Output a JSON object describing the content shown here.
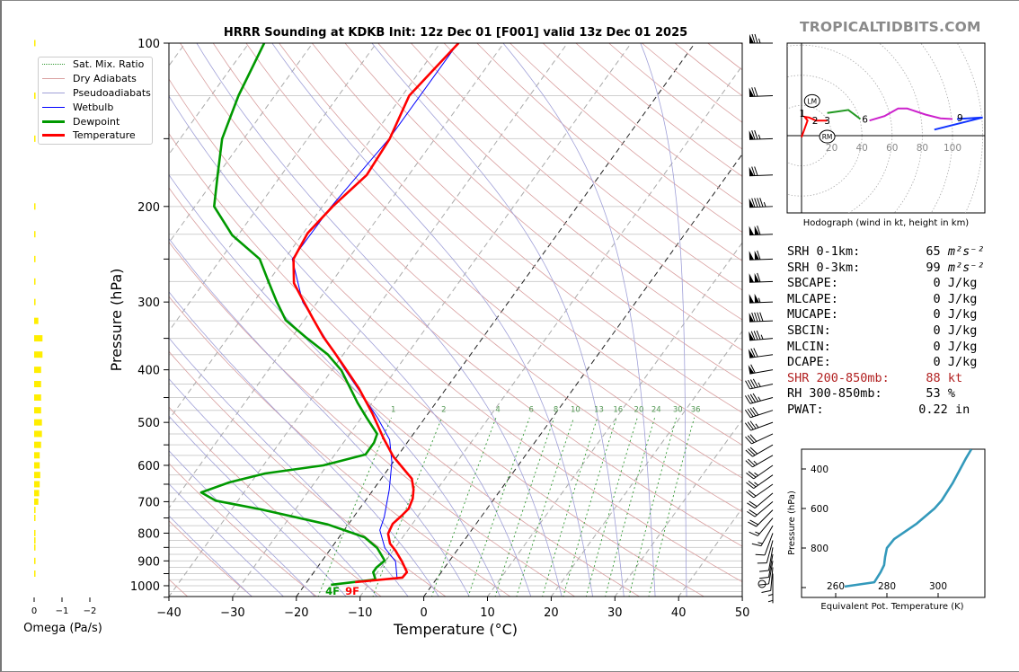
{
  "watermark": "TROPICALTIDBITS.COM",
  "chart_data": [
    {
      "type": "line",
      "title": "HRRR Sounding at KDKB Init: 12z Dec 01 [F001] valid 13z Dec 01 2025",
      "xlabel": "Temperature (°C)",
      "ylabel": "Pressure (hPa)",
      "xlim": [
        -40,
        50
      ],
      "ylim": [
        1050,
        100
      ],
      "x_ticks": [
        "−40",
        "−30",
        "−20",
        "−10",
        "0",
        "10",
        "20",
        "30",
        "40",
        "50"
      ],
      "x_tick_values": [
        -40,
        -30,
        -20,
        -10,
        0,
        10,
        20,
        30,
        40,
        50
      ],
      "y_ticks": [
        "100",
        "200",
        "300",
        "400",
        "500",
        "600",
        "700",
        "800",
        "900",
        "1000"
      ],
      "y_tick_values": [
        100,
        200,
        300,
        400,
        500,
        600,
        700,
        800,
        900,
        1000
      ],
      "legend": {
        "placement": "top-left",
        "entries": [
          "Sat. Mix. Ratio",
          "Dry Adiabats",
          "Pseudoadiabats",
          "Wetbulb",
          "Dewpoint",
          "Temperature"
        ]
      },
      "colors": {
        "temperature": "#ff0000",
        "dewpoint": "#009900",
        "wetbulb": "#0000ff",
        "dry": "#d9a0a0",
        "moist": "#a0a0d8",
        "mix": "#339933"
      },
      "mixing_ratio_labels": [
        "1",
        "2",
        "4",
        "6",
        "8",
        "10",
        "13",
        "16",
        "20",
        "24",
        "30",
        "36"
      ],
      "mixing_ratio_values": [
        1,
        2,
        4,
        6,
        8,
        10,
        13,
        16,
        20,
        24,
        30,
        36
      ],
      "surface_labels": {
        "dewpoint": "4F",
        "temperature": "9F"
      },
      "series": [
        {
          "name": "Temperature",
          "points": [
            [
              985,
              -12.4
            ],
            [
              966,
              -5.5
            ],
            [
              944,
              -5.4
            ],
            [
              902,
              -7.4
            ],
            [
              862,
              -9.6
            ],
            [
              836,
              -11.3
            ],
            [
              802,
              -12.7
            ],
            [
              769,
              -13.1
            ],
            [
              743,
              -12.6
            ],
            [
              721,
              -12.3
            ],
            [
              691,
              -12.8
            ],
            [
              665,
              -13.7
            ],
            [
              635,
              -15.2
            ],
            [
              609,
              -17.6
            ],
            [
              578,
              -20.6
            ],
            [
              535,
              -24.2
            ],
            [
              481,
              -28.8
            ],
            [
              432,
              -33.8
            ],
            [
              396,
              -38.3
            ],
            [
              371,
              -41.7
            ],
            [
              348,
              -45.1
            ],
            [
              322,
              -48.8
            ],
            [
              300,
              -52.1
            ],
            [
              277,
              -55.8
            ],
            [
              250,
              -58.6
            ],
            [
              224,
              -59.3
            ],
            [
              200,
              -58.4
            ],
            [
              175,
              -56.6
            ],
            [
              150,
              -57.1
            ],
            [
              125,
              -58.9
            ],
            [
              113,
              -58.1
            ],
            [
              100,
              -57.1
            ]
          ]
        },
        {
          "name": "Dewpoint",
          "points": [
            [
              996,
              -15.9
            ],
            [
              974,
              -9.5
            ],
            [
              944,
              -10.7
            ],
            [
              926,
              -10.7
            ],
            [
              899,
              -10.2
            ],
            [
              852,
              -12.8
            ],
            [
              814,
              -16.0
            ],
            [
              771,
              -23.2
            ],
            [
              723,
              -35.5
            ],
            [
              697,
              -43.5
            ],
            [
              673,
              -46.7
            ],
            [
              645,
              -43.4
            ],
            [
              621,
              -38.8
            ],
            [
              600,
              -30.6
            ],
            [
              573,
              -25.2
            ],
            [
              545,
              -25.2
            ],
            [
              525,
              -25.7
            ],
            [
              490,
              -29.2
            ],
            [
              460,
              -32.3
            ],
            [
              401,
              -38.5
            ],
            [
              375,
              -42.4
            ],
            [
              348,
              -47.9
            ],
            [
              324,
              -52.9
            ],
            [
              299,
              -56.5
            ],
            [
              275,
              -60
            ],
            [
              250,
              -63.9
            ],
            [
              226,
              -70.9
            ],
            [
              200,
              -77
            ],
            [
              175,
              -80
            ],
            [
              150,
              -83.4
            ],
            [
              125,
              -85.7
            ],
            [
              100,
              -87.6
            ]
          ]
        },
        {
          "name": "Wetbulb",
          "points": [
            [
              974,
              -6.1
            ],
            [
              902,
              -8.4
            ],
            [
              852,
              -11.6
            ],
            [
              790,
              -14.4
            ],
            [
              747,
              -15.2
            ],
            [
              665,
              -17.5
            ],
            [
              592,
              -20.2
            ],
            [
              538,
              -23.1
            ],
            [
              490,
              -27.5
            ],
            [
              432,
              -34.0
            ],
            [
              396,
              -38.5
            ],
            [
              300,
              -52.3
            ],
            [
              250,
              -58.8
            ],
            [
              200,
              -58.6
            ],
            [
              150,
              -57.2
            ],
            [
              100,
              -57.2
            ]
          ]
        }
      ],
      "wind_barbs": [
        [
          100,
          270,
          75
        ],
        [
          125,
          268,
          70
        ],
        [
          150,
          268,
          75
        ],
        [
          175,
          268,
          70
        ],
        [
          200,
          268,
          95
        ],
        [
          225,
          268,
          110
        ],
        [
          250,
          268,
          110
        ],
        [
          275,
          268,
          110
        ],
        [
          300,
          268,
          105
        ],
        [
          325,
          268,
          90
        ],
        [
          350,
          265,
          85
        ],
        [
          375,
          262,
          70
        ],
        [
          400,
          260,
          60
        ],
        [
          425,
          258,
          45
        ],
        [
          450,
          255,
          45
        ],
        [
          475,
          252,
          40
        ],
        [
          500,
          250,
          35
        ],
        [
          525,
          245,
          30
        ],
        [
          550,
          240,
          30
        ],
        [
          575,
          240,
          25
        ],
        [
          600,
          235,
          25
        ],
        [
          625,
          235,
          25
        ],
        [
          650,
          235,
          20
        ],
        [
          675,
          230,
          20
        ],
        [
          700,
          230,
          20
        ],
        [
          725,
          225,
          20
        ],
        [
          750,
          220,
          15
        ],
        [
          775,
          210,
          15
        ],
        [
          800,
          200,
          10
        ],
        [
          825,
          195,
          10
        ],
        [
          850,
          190,
          10
        ],
        [
          875,
          190,
          10
        ],
        [
          900,
          190,
          10
        ],
        [
          925,
          185,
          10
        ],
        [
          950,
          180,
          5
        ],
        [
          975,
          180,
          5
        ],
        [
          1000,
          0,
          0
        ]
      ]
    },
    {
      "type": "bar",
      "xlabel": "Omega (Pa/s)",
      "x_ticks": [
        "0",
        "−1",
        "−2"
      ],
      "x_tick_values": [
        0,
        -1,
        -2
      ],
      "color": "#ffee00",
      "points": [
        [
          100,
          -0.02
        ],
        [
          125,
          -0.05
        ],
        [
          150,
          -0.04
        ],
        [
          200,
          -0.01
        ],
        [
          225,
          -0.02
        ],
        [
          250,
          -0.03
        ],
        [
          275,
          -0.04
        ],
        [
          300,
          -0.05
        ],
        [
          325,
          -0.15
        ],
        [
          350,
          -0.3
        ],
        [
          375,
          -0.3
        ],
        [
          400,
          -0.25
        ],
        [
          425,
          -0.25
        ],
        [
          450,
          -0.25
        ],
        [
          475,
          -0.25
        ],
        [
          500,
          -0.28
        ],
        [
          525,
          -0.28
        ],
        [
          550,
          -0.25
        ],
        [
          575,
          -0.2
        ],
        [
          600,
          -0.2
        ],
        [
          625,
          -0.22
        ],
        [
          650,
          -0.2
        ],
        [
          675,
          -0.18
        ],
        [
          700,
          -0.15
        ],
        [
          725,
          -0.05
        ],
        [
          750,
          -0.03
        ],
        [
          800,
          -0.02
        ],
        [
          825,
          -0.05
        ],
        [
          850,
          -0.03
        ],
        [
          900,
          -0.01
        ],
        [
          950,
          -0.02
        ]
      ]
    },
    {
      "type": "line",
      "title": "Hodograph (wind in kt, height in km)",
      "ring_labels": [
        "20",
        "40",
        "60",
        "80",
        "100"
      ],
      "ring_values": [
        20,
        40,
        60,
        80,
        100
      ],
      "segments": [
        {
          "name": "0-3 km",
          "color": "#ff0000",
          "points": [
            [
              0,
              -1
            ],
            [
              4,
              10
            ],
            [
              2,
              12.5
            ],
            [
              5,
              12
            ],
            [
              9.5,
              10
            ],
            [
              17,
              10
            ]
          ]
        },
        {
          "name": "3-6 km",
          "color": "#229922",
          "points": [
            [
              17,
              15
            ],
            [
              24,
              16
            ],
            [
              31,
              17
            ],
            [
              39,
              11
            ]
          ]
        },
        {
          "name": "6-9 km",
          "color": "#cc22cc",
          "points": [
            [
              45,
              10
            ],
            [
              55,
              13
            ],
            [
              64,
              18
            ],
            [
              70,
              18
            ],
            [
              82,
              14
            ],
            [
              92,
              11.5
            ],
            [
              100,
              11
            ]
          ]
        },
        {
          "name": "9-12 km",
          "color": "#1133ff",
          "points": [
            [
              103,
              11
            ],
            [
              120,
              12
            ],
            [
              88,
              4
            ]
          ]
        }
      ],
      "height_labels": [
        {
          "text": "1",
          "u": 0.5,
          "v": 15
        },
        {
          "text": "2",
          "u": 9,
          "v": 10
        },
        {
          "text": "3",
          "u": 17,
          "v": 10
        },
        {
          "text": "6",
          "u": 42,
          "v": 11
        },
        {
          "text": "9",
          "u": 105,
          "v": 12
        }
      ],
      "storm_motion": [
        {
          "text": "LM",
          "u": 7,
          "v": 23
        },
        {
          "text": "RM",
          "u": 17,
          "v": -0.6
        }
      ]
    },
    {
      "type": "line",
      "xlabel": "Equivalent Pot. Temperature (K)",
      "ylabel": "Pressure (hPa)",
      "x_ticks": [
        "260",
        "280",
        "300"
      ],
      "x_tick_values": [
        260,
        280,
        300
      ],
      "y_ticks": [
        "400",
        "600",
        "800"
      ],
      "y_tick_values": [
        400,
        600,
        800
      ],
      "color": "#3399bb",
      "points": [
        [
          995,
          263.5
        ],
        [
          973,
          275.1
        ],
        [
          923,
          277.5
        ],
        [
          886,
          278.9
        ],
        [
          845,
          279.3
        ],
        [
          800,
          280
        ],
        [
          755,
          282.8
        ],
        [
          677,
          291.6
        ],
        [
          600,
          298.6
        ],
        [
          559,
          301.4
        ],
        [
          473,
          305.6
        ],
        [
          345,
          310.9
        ],
        [
          300,
          313
        ]
      ]
    }
  ],
  "stats": [
    {
      "label": "SRH 0-1km:",
      "value": "65",
      "unit": "m²s⁻²"
    },
    {
      "label": "SRH 0-3km:",
      "value": "99",
      "unit": "m²s⁻²"
    },
    {
      "label": "SBCAPE:",
      "value": "0",
      "unit": "J/kg"
    },
    {
      "label": "MLCAPE:",
      "value": "0",
      "unit": "J/kg"
    },
    {
      "label": "MUCAPE:",
      "value": "0",
      "unit": "J/kg"
    },
    {
      "label": "SBCIN:",
      "value": "0",
      "unit": "J/kg"
    },
    {
      "label": "MLCIN:",
      "value": "0",
      "unit": "J/kg"
    },
    {
      "label": "DCAPE:",
      "value": "0",
      "unit": "J/kg"
    },
    {
      "label": "SHR 200-850mb:",
      "value": "88",
      "unit": "kt"
    },
    {
      "label": "RH 300-850mb:",
      "value": "53",
      "unit": "%"
    },
    {
      "label": "PWAT:",
      "value": "0.22",
      "unit": "in"
    }
  ]
}
